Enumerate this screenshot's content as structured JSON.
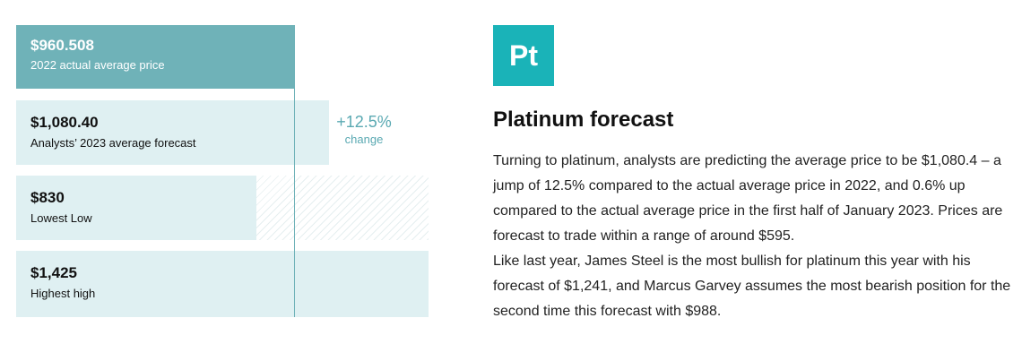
{
  "chart_data": {
    "type": "bar",
    "orientation": "horizontal",
    "bars": [
      {
        "value": 960.508,
        "value_label": "$960.508",
        "label": "2022 actual average price",
        "color": "#6fb2b8",
        "text_color": "#ffffff"
      },
      {
        "value": 1080.4,
        "value_label": "$1,080.40",
        "label": "Analysts’ 2023 average forecast",
        "color": "#dff0f2",
        "text_color": "#111111"
      },
      {
        "value": 830,
        "value_label": "$830",
        "label": "Lowest Low",
        "color": "#dff0f2",
        "text_color": "#111111"
      },
      {
        "value": 1425,
        "value_label": "$1,425",
        "label": "Highest high",
        "color": "#dff0f2",
        "text_color": "#111111"
      }
    ],
    "reference_value": 960.508,
    "change": {
      "value": "+12.5%",
      "label": "change"
    }
  },
  "info": {
    "logo_text": "Pt",
    "title": "Platinum forecast",
    "paragraphs": [
      "Turning to platinum, analysts are predicting the average price to be $1,080.4 – a jump of 12.5% compared to the actual average price in 2022, and 0.6% up compared to the actual average price in the first half of January 2023. Prices are forecast to trade within a range of around $595.",
      "Like last year, James Steel is the most bullish for platinum this year with his forecast of $1,241, and Marcus Garvey assumes the most bearish position for the second time this forecast with $988."
    ]
  },
  "colors": {
    "accent": "#1ab3b8",
    "bar_primary": "#6fb2b8",
    "bar_light": "#dff0f2",
    "change_text": "#5aa9b2"
  }
}
